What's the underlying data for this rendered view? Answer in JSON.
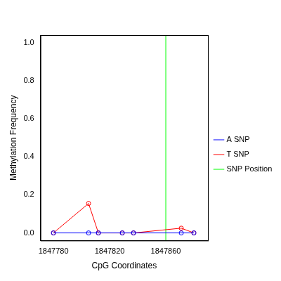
{
  "chart_data": {
    "type": "line",
    "x_label": "CpG Coordinates",
    "y_label": "Methylation Frequency",
    "x": [
      1847780,
      1847805,
      1847812,
      1847829,
      1847837,
      1847871,
      1847880
    ],
    "series": [
      {
        "name": "A SNP",
        "color": "#0000ff",
        "marker": "circle",
        "line_style": "solid",
        "values": [
          0,
          0,
          0,
          0,
          0,
          0,
          0
        ]
      },
      {
        "name": "T SNP",
        "color": "#ff0000",
        "marker": "circle",
        "line_style": "solid",
        "values": [
          0,
          0.155,
          0,
          0,
          0,
          0.025,
          0
        ]
      }
    ],
    "vlines": [
      {
        "name": "SNP Position",
        "x": 1847860,
        "color": "#00ff00"
      }
    ],
    "xlim": [
      1847770.8,
      1847890
    ],
    "xticks": [
      1847780,
      1847820,
      1847860
    ],
    "ylim": [
      -0.04,
      1.04
    ],
    "yticks": [
      {
        "value": 0,
        "label": "0.0"
      },
      {
        "value": 0.2,
        "label": "0.2"
      },
      {
        "value": 0.4,
        "label": "0.4"
      },
      {
        "value": 0.6,
        "label": "0.6"
      },
      {
        "value": 0.8,
        "label": "0.8"
      },
      {
        "value": 1.0,
        "label": "1.0"
      }
    ],
    "grid": false,
    "legend": "right"
  }
}
